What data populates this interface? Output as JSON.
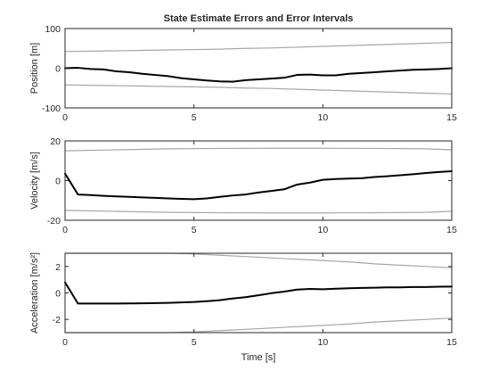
{
  "chart_data": {
    "title": "State Estimate Errors and Error Intervals",
    "xlabel": "Time [s]",
    "plots": [
      {
        "type": "line",
        "ylabel": "Position [m]",
        "xlim": [
          0,
          15
        ],
        "ylim": [
          -100,
          100
        ],
        "xticks": [
          0,
          5,
          10,
          15
        ],
        "yticks": [
          -100,
          0,
          100
        ],
        "grid": false,
        "series": [
          {
            "role": "estimate-error",
            "color": "#000000",
            "points": [
              [
                0.0,
                0
              ],
              [
                0.5,
                1
              ],
              [
                1.0,
                -2
              ],
              [
                1.5,
                -3
              ],
              [
                2.0,
                -8
              ],
              [
                2.5,
                -10
              ],
              [
                3.0,
                -14
              ],
              [
                3.5,
                -17
              ],
              [
                4.0,
                -20
              ],
              [
                4.5,
                -25
              ],
              [
                5.0,
                -28
              ],
              [
                5.5,
                -31
              ],
              [
                6.0,
                -33
              ],
              [
                6.5,
                -34
              ],
              [
                7.0,
                -30
              ],
              [
                7.5,
                -28
              ],
              [
                8.0,
                -26
              ],
              [
                8.5,
                -24
              ],
              [
                9.0,
                -17
              ],
              [
                9.5,
                -16
              ],
              [
                10.0,
                -18
              ],
              [
                10.5,
                -18
              ],
              [
                11.0,
                -14
              ],
              [
                11.5,
                -12
              ],
              [
                12.0,
                -10
              ],
              [
                12.5,
                -8
              ],
              [
                13.0,
                -6
              ],
              [
                13.5,
                -4
              ],
              [
                14.0,
                -3
              ],
              [
                14.5,
                -2
              ],
              [
                15.0,
                0
              ]
            ]
          },
          {
            "role": "upper-interval",
            "color": "#a6a6a6",
            "points": [
              [
                0.0,
                42
              ],
              [
                1.0,
                43
              ],
              [
                2.0,
                44
              ],
              [
                3.0,
                45
              ],
              [
                4.0,
                46
              ],
              [
                5.0,
                47
              ],
              [
                6.0,
                48
              ],
              [
                7.0,
                50
              ],
              [
                8.0,
                51
              ],
              [
                9.0,
                53
              ],
              [
                10.0,
                55
              ],
              [
                11.0,
                57
              ],
              [
                12.0,
                59
              ],
              [
                13.0,
                61
              ],
              [
                14.0,
                63
              ],
              [
                15.0,
                65
              ]
            ]
          },
          {
            "role": "lower-interval",
            "color": "#a6a6a6",
            "points": [
              [
                0.0,
                -42
              ],
              [
                1.0,
                -43
              ],
              [
                2.0,
                -44
              ],
              [
                3.0,
                -45
              ],
              [
                4.0,
                -46
              ],
              [
                5.0,
                -47
              ],
              [
                6.0,
                -48
              ],
              [
                7.0,
                -50
              ],
              [
                8.0,
                -51
              ],
              [
                9.0,
                -53
              ],
              [
                10.0,
                -55
              ],
              [
                11.0,
                -57
              ],
              [
                12.0,
                -59
              ],
              [
                13.0,
                -61
              ],
              [
                14.0,
                -63
              ],
              [
                15.0,
                -65
              ]
            ]
          }
        ]
      },
      {
        "type": "line",
        "ylabel": "Velocity [m/s]",
        "xlim": [
          0,
          15
        ],
        "ylim": [
          -20,
          20
        ],
        "xticks": [
          0,
          5,
          10,
          15
        ],
        "yticks": [
          -20,
          0,
          20
        ],
        "grid": false,
        "series": [
          {
            "role": "estimate-error",
            "color": "#000000",
            "points": [
              [
                0.0,
                3.5
              ],
              [
                0.5,
                -7.0
              ],
              [
                1.0,
                -7.3
              ],
              [
                1.5,
                -7.7
              ],
              [
                2.0,
                -8.0
              ],
              [
                2.5,
                -8.2
              ],
              [
                3.0,
                -8.5
              ],
              [
                3.5,
                -8.7
              ],
              [
                4.0,
                -9.0
              ],
              [
                4.5,
                -9.2
              ],
              [
                5.0,
                -9.4
              ],
              [
                5.5,
                -9.0
              ],
              [
                6.0,
                -8.2
              ],
              [
                6.5,
                -7.5
              ],
              [
                7.0,
                -7.0
              ],
              [
                7.5,
                -6.0
              ],
              [
                8.0,
                -5.2
              ],
              [
                8.5,
                -4.4
              ],
              [
                9.0,
                -2.0
              ],
              [
                9.5,
                -1.0
              ],
              [
                10.0,
                0.4
              ],
              [
                10.5,
                0.8
              ],
              [
                11.0,
                1.0
              ],
              [
                11.5,
                1.2
              ],
              [
                12.0,
                1.8
              ],
              [
                12.5,
                2.2
              ],
              [
                13.0,
                2.7
              ],
              [
                13.5,
                3.2
              ],
              [
                14.0,
                3.8
              ],
              [
                14.5,
                4.3
              ],
              [
                15.0,
                4.7
              ]
            ]
          },
          {
            "role": "upper-interval",
            "color": "#a6a6a6",
            "points": [
              [
                0.0,
                15.0
              ],
              [
                2.0,
                15.5
              ],
              [
                4.0,
                16.0
              ],
              [
                6.0,
                16.2
              ],
              [
                8.0,
                16.3
              ],
              [
                10.0,
                16.3
              ],
              [
                12.0,
                16.2
              ],
              [
                14.0,
                16.0
              ],
              [
                15.0,
                15.5
              ]
            ]
          },
          {
            "role": "lower-interval",
            "color": "#a6a6a6",
            "points": [
              [
                0.0,
                -15.0
              ],
              [
                2.0,
                -15.5
              ],
              [
                4.0,
                -16.0
              ],
              [
                6.0,
                -16.2
              ],
              [
                8.0,
                -16.3
              ],
              [
                10.0,
                -16.3
              ],
              [
                12.0,
                -16.2
              ],
              [
                14.0,
                -16.0
              ],
              [
                15.0,
                -15.5
              ]
            ]
          }
        ]
      },
      {
        "type": "line",
        "ylabel": "Acceleration [m/s²]",
        "xlim": [
          0,
          15
        ],
        "ylim": [
          -3,
          3
        ],
        "xticks": [
          0,
          5,
          10,
          15
        ],
        "yticks": [
          -2,
          0,
          2
        ],
        "grid": false,
        "series": [
          {
            "role": "estimate-error",
            "color": "#000000",
            "points": [
              [
                0.0,
                0.8
              ],
              [
                0.5,
                -0.8
              ],
              [
                1.0,
                -0.8
              ],
              [
                2.0,
                -0.8
              ],
              [
                3.0,
                -0.78
              ],
              [
                4.0,
                -0.75
              ],
              [
                5.0,
                -0.68
              ],
              [
                5.5,
                -0.62
              ],
              [
                6.0,
                -0.55
              ],
              [
                6.5,
                -0.42
              ],
              [
                7.0,
                -0.32
              ],
              [
                7.5,
                -0.18
              ],
              [
                8.0,
                -0.02
              ],
              [
                8.5,
                0.1
              ],
              [
                9.0,
                0.25
              ],
              [
                9.5,
                0.3
              ],
              [
                10.0,
                0.28
              ],
              [
                10.5,
                0.32
              ],
              [
                11.0,
                0.35
              ],
              [
                11.5,
                0.38
              ],
              [
                12.0,
                0.4
              ],
              [
                12.5,
                0.42
              ],
              [
                13.0,
                0.42
              ],
              [
                13.5,
                0.45
              ],
              [
                14.0,
                0.45
              ],
              [
                14.5,
                0.47
              ],
              [
                15.0,
                0.48
              ]
            ]
          },
          {
            "role": "upper-interval",
            "color": "#a6a6a6",
            "points": [
              [
                0.0,
                3.0
              ],
              [
                1.0,
                3.0
              ],
              [
                2.0,
                3.0
              ],
              [
                3.0,
                3.0
              ],
              [
                4.0,
                3.0
              ],
              [
                5.0,
                2.95
              ],
              [
                6.0,
                2.85
              ],
              [
                7.0,
                2.75
              ],
              [
                8.0,
                2.65
              ],
              [
                9.0,
                2.55
              ],
              [
                10.0,
                2.45
              ],
              [
                11.0,
                2.35
              ],
              [
                12.0,
                2.2
              ],
              [
                13.0,
                2.1
              ],
              [
                14.0,
                2.0
              ],
              [
                15.0,
                1.9
              ]
            ]
          },
          {
            "role": "lower-interval",
            "color": "#a6a6a6",
            "points": [
              [
                0.0,
                -3.0
              ],
              [
                1.0,
                -3.0
              ],
              [
                2.0,
                -3.0
              ],
              [
                3.0,
                -3.0
              ],
              [
                4.0,
                -3.0
              ],
              [
                5.0,
                -2.95
              ],
              [
                6.0,
                -2.85
              ],
              [
                7.0,
                -2.75
              ],
              [
                8.0,
                -2.65
              ],
              [
                9.0,
                -2.55
              ],
              [
                10.0,
                -2.45
              ],
              [
                11.0,
                -2.35
              ],
              [
                12.0,
                -2.2
              ],
              [
                13.0,
                -2.1
              ],
              [
                14.0,
                -2.0
              ],
              [
                15.0,
                -1.9
              ]
            ]
          }
        ]
      }
    ]
  }
}
